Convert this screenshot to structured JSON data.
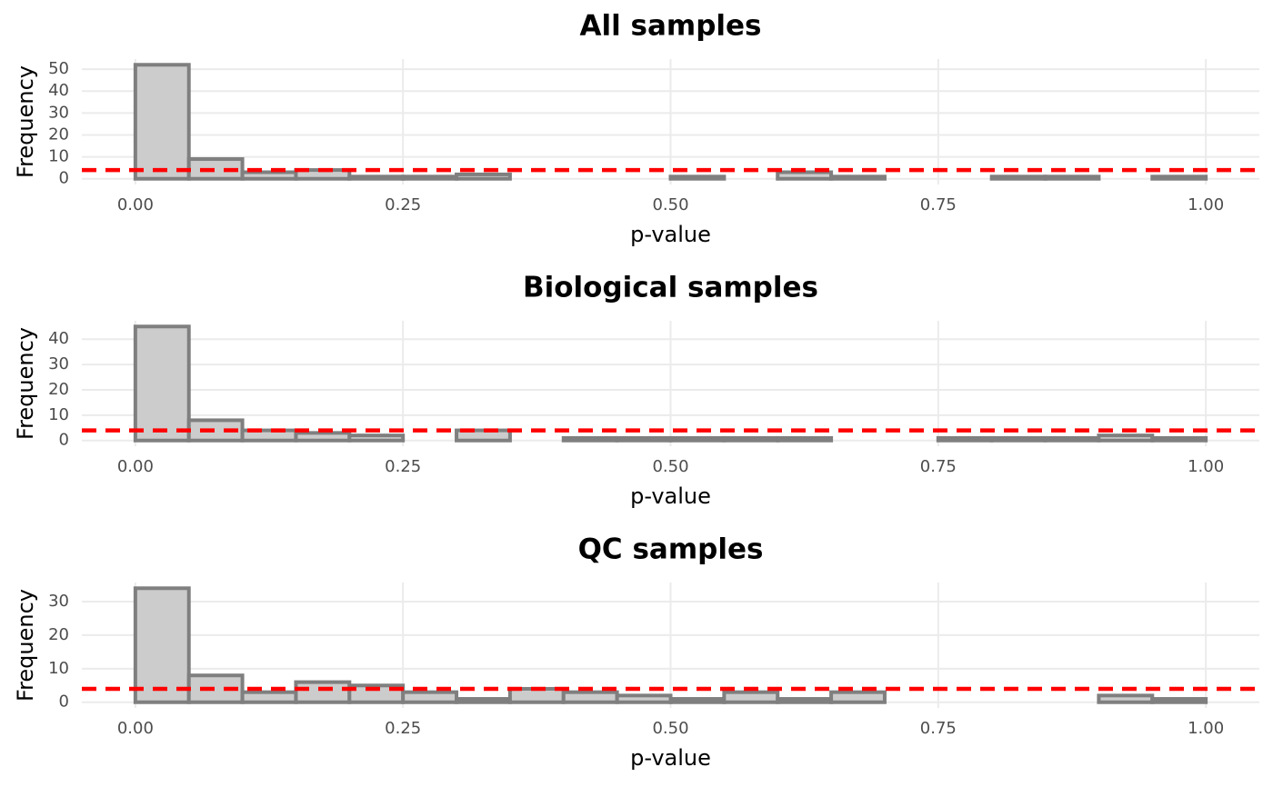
{
  "chart_data": [
    {
      "type": "histogram",
      "title": "All samples",
      "xlabel": "p-value",
      "ylabel": "Frequency",
      "bins": [
        0,
        0.05,
        0.1,
        0.15,
        0.2,
        0.25,
        0.3,
        0.35,
        0.4,
        0.45,
        0.5,
        0.55,
        0.6,
        0.65,
        0.7,
        0.75,
        0.8,
        0.85,
        0.9,
        0.95,
        1
      ],
      "values": [
        52,
        9,
        3,
        4,
        1,
        1,
        2,
        0,
        0,
        0,
        1,
        0,
        3,
        1,
        0,
        0,
        1,
        1,
        0,
        1
      ],
      "color": "#cccccc",
      "edgecolor": "#7f7f7f",
      "hline": 4,
      "hline_color": "#ff0000",
      "xlim": [
        -0.05,
        1.05
      ],
      "ylim": [
        -2.6,
        54.6
      ],
      "xticks": [
        {
          "value": 0,
          "label": "0.00"
        },
        {
          "value": 0.25,
          "label": "0.25"
        },
        {
          "value": 0.5,
          "label": "0.50"
        },
        {
          "value": 0.75,
          "label": "0.75"
        },
        {
          "value": 1,
          "label": "1.00"
        }
      ],
      "yticks": [
        0,
        10,
        20,
        30,
        40,
        50
      ],
      "grid": true
    },
    {
      "type": "histogram",
      "title": "Biological samples",
      "xlabel": "p-value",
      "ylabel": "Frequency",
      "bins": [
        0,
        0.05,
        0.1,
        0.15,
        0.2,
        0.25,
        0.3,
        0.35,
        0.4,
        0.45,
        0.5,
        0.55,
        0.6,
        0.65,
        0.7,
        0.75,
        0.8,
        0.85,
        0.9,
        0.95,
        1
      ],
      "values": [
        45,
        8,
        4,
        3,
        2,
        0,
        4,
        0,
        1,
        1,
        1,
        1,
        1,
        0,
        0,
        1,
        1,
        1,
        2,
        1
      ],
      "color": "#cccccc",
      "edgecolor": "#7f7f7f",
      "hline": 4,
      "hline_color": "#ff0000",
      "xlim": [
        -0.05,
        1.05
      ],
      "ylim": [
        -2.25,
        47.25
      ],
      "xticks": [
        {
          "value": 0,
          "label": "0.00"
        },
        {
          "value": 0.25,
          "label": "0.25"
        },
        {
          "value": 0.5,
          "label": "0.50"
        },
        {
          "value": 0.75,
          "label": "0.75"
        },
        {
          "value": 1,
          "label": "1.00"
        }
      ],
      "yticks": [
        0,
        10,
        20,
        30,
        40
      ],
      "grid": true
    },
    {
      "type": "histogram",
      "title": "QC samples",
      "xlabel": "p-value",
      "ylabel": "Frequency",
      "bins": [
        0,
        0.05,
        0.1,
        0.15,
        0.2,
        0.25,
        0.3,
        0.35,
        0.4,
        0.45,
        0.5,
        0.55,
        0.6,
        0.65,
        0.7,
        0.75,
        0.8,
        0.85,
        0.9,
        0.95,
        1
      ],
      "values": [
        34,
        8,
        3,
        6,
        5,
        3,
        1,
        4,
        3,
        2,
        1,
        3,
        1,
        3,
        0,
        0,
        0,
        0,
        2,
        1
      ],
      "color": "#cccccc",
      "edgecolor": "#7f7f7f",
      "hline": 4,
      "hline_color": "#ff0000",
      "xlim": [
        -0.05,
        1.05
      ],
      "ylim": [
        -1.7,
        35.7
      ],
      "xticks": [
        {
          "value": 0,
          "label": "0.00"
        },
        {
          "value": 0.25,
          "label": "0.25"
        },
        {
          "value": 0.5,
          "label": "0.50"
        },
        {
          "value": 0.75,
          "label": "0.75"
        },
        {
          "value": 1,
          "label": "1.00"
        }
      ],
      "yticks": [
        0,
        10,
        20,
        30
      ],
      "grid": true
    }
  ]
}
